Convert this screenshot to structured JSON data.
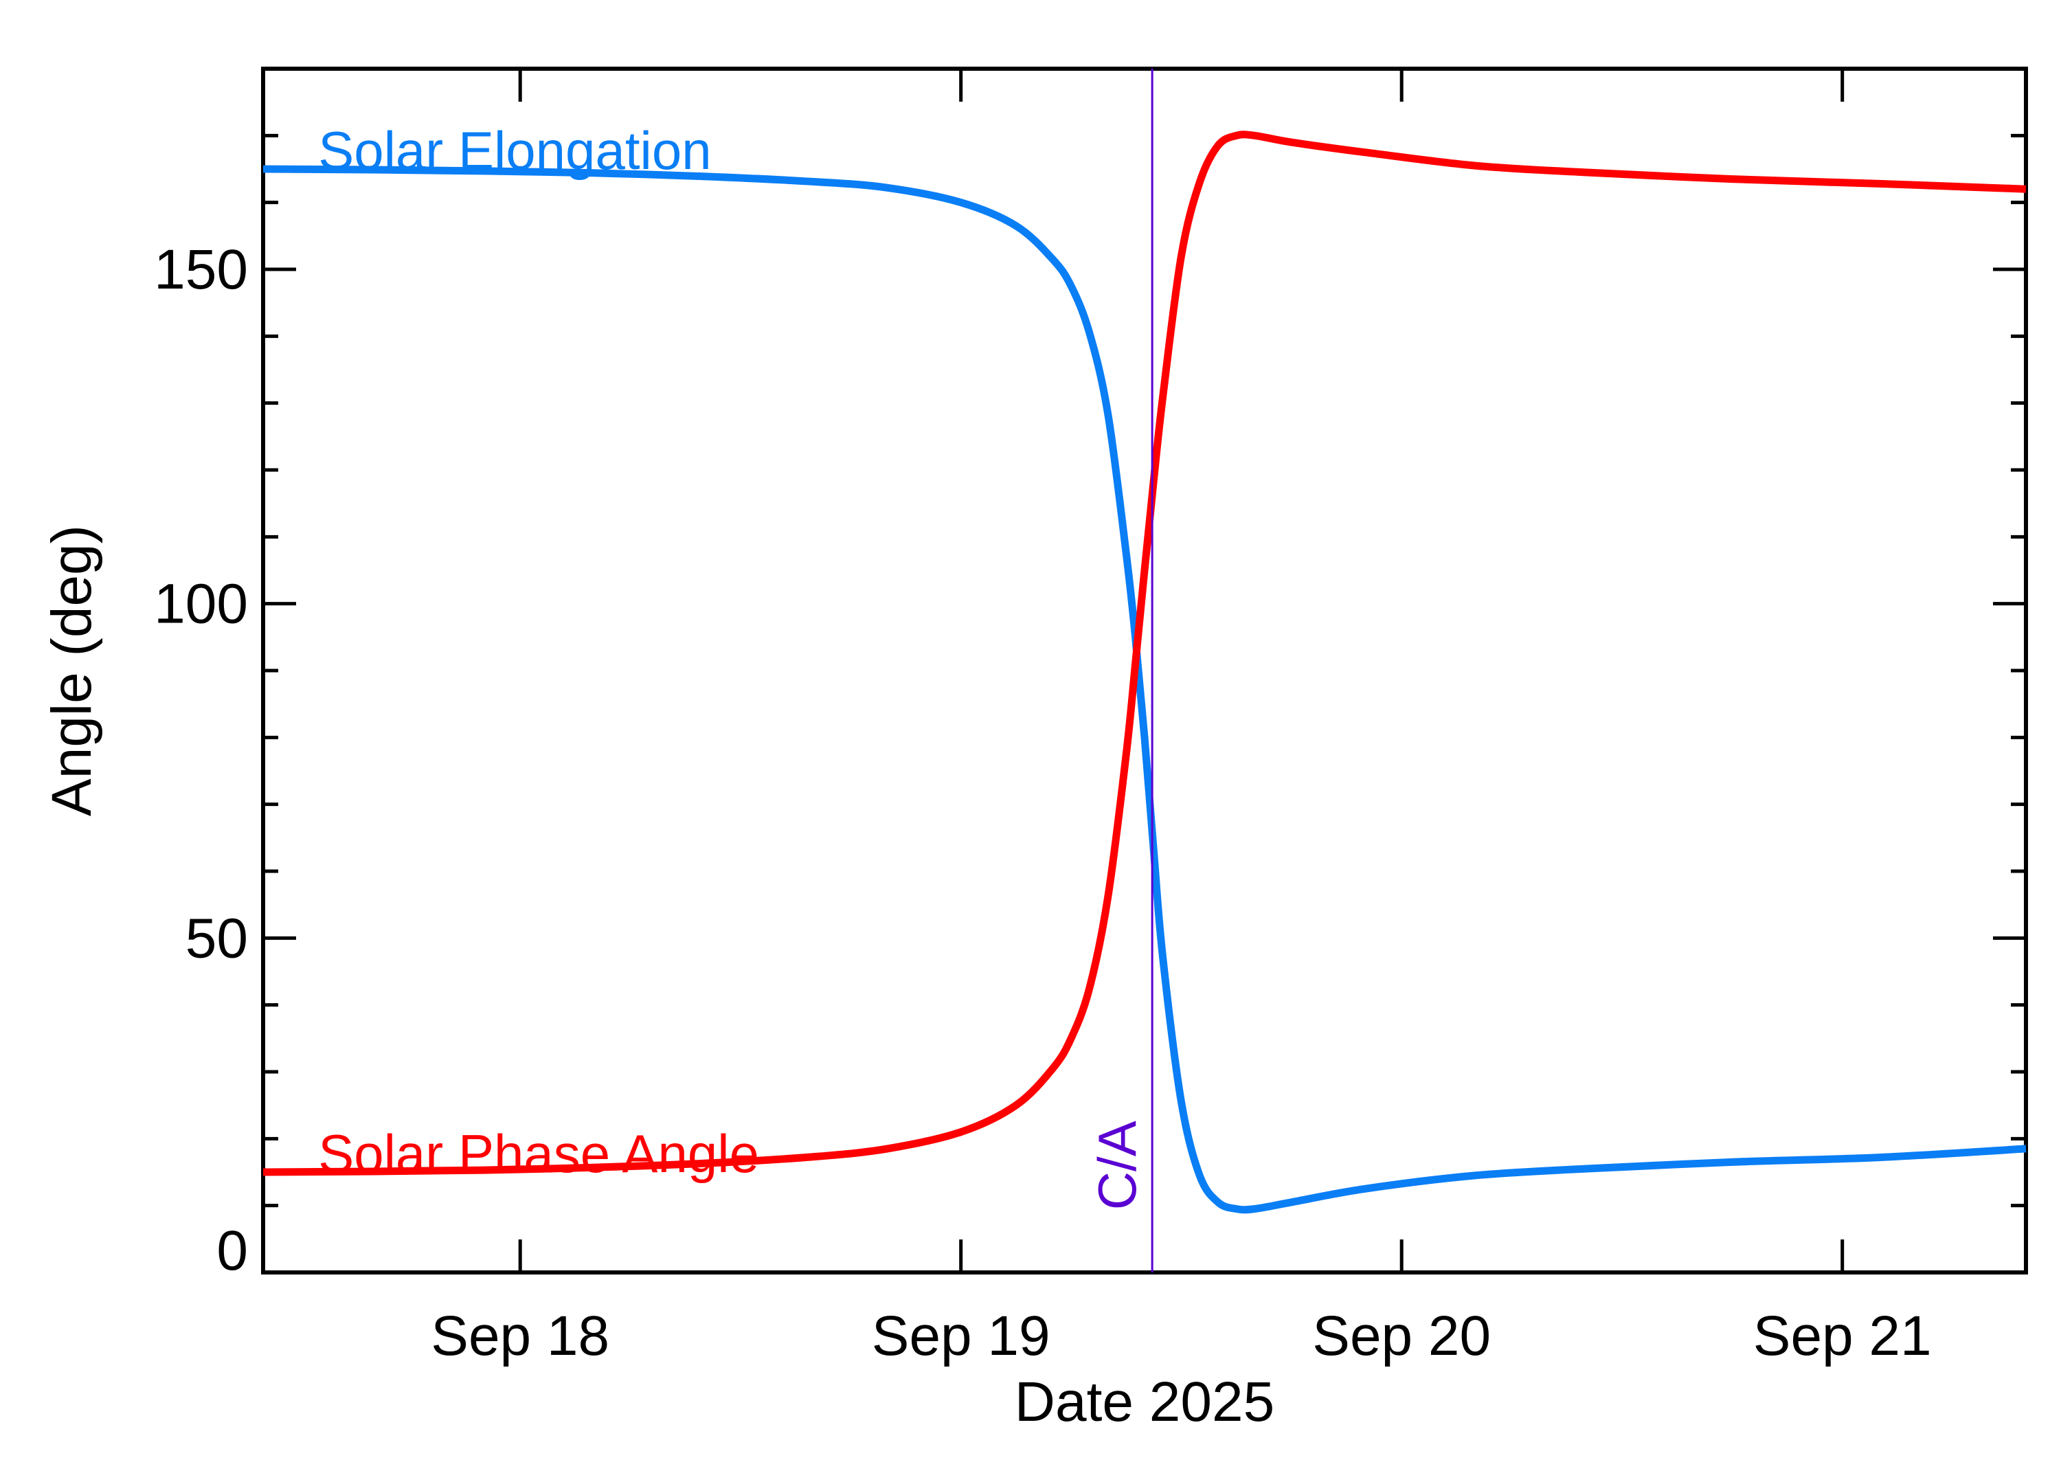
{
  "chart_data": {
    "type": "line",
    "title": "",
    "xlabel": "Date 2025",
    "ylabel": "Angle (deg)",
    "xlim": [
      "2025-09-17 10:00",
      "2025-09-21 10:00"
    ],
    "ylim": [
      0,
      180
    ],
    "x_ticks": [
      {
        "date": "2025-09-18 00:00",
        "label": "Sep 18"
      },
      {
        "date": "2025-09-19 00:00",
        "label": "Sep 19"
      },
      {
        "date": "2025-09-20 00:00",
        "label": "Sep 20"
      },
      {
        "date": "2025-09-21 00:00",
        "label": "Sep 21"
      }
    ],
    "y_ticks": [
      0,
      50,
      100,
      150
    ],
    "y_minor_step": 10,
    "x_minor_per_day": 0,
    "grid": false,
    "closest_approach": {
      "date": "2025-09-19 10:25",
      "label": "C/A",
      "color": "#5a00d2"
    },
    "series": [
      {
        "name": "Solar Elongation",
        "color": "#0a7ef5",
        "label_at": {
          "date": "2025-09-17 13:00",
          "y": 165
        },
        "points": [
          [
            "2025-09-17 10:00",
            165.0
          ],
          [
            "2025-09-17 16:00",
            164.9
          ],
          [
            "2025-09-17 22:00",
            164.7
          ],
          [
            "2025-09-18 04:00",
            164.4
          ],
          [
            "2025-09-18 10:00",
            163.9
          ],
          [
            "2025-09-18 16:00",
            163.1
          ],
          [
            "2025-09-18 20:00",
            162.2
          ],
          [
            "2025-09-19 00:00",
            160.0
          ],
          [
            "2025-09-19 03:00",
            156.5
          ],
          [
            "2025-09-19 05:00",
            151.5
          ],
          [
            "2025-09-19 06:00",
            147.5
          ],
          [
            "2025-09-19 07:00",
            140.5
          ],
          [
            "2025-09-19 08:00",
            128.5
          ],
          [
            "2025-09-19 09:00",
            107.5
          ],
          [
            "2025-09-19 09:30",
            95.0
          ],
          [
            "2025-09-19 10:00",
            80.0
          ],
          [
            "2025-09-19 10:30",
            63.0
          ],
          [
            "2025-09-19 11:00",
            47.0
          ],
          [
            "2025-09-19 12:00",
            25.5
          ],
          [
            "2025-09-19 13:00",
            14.5
          ],
          [
            "2025-09-19 14:00",
            10.5
          ],
          [
            "2025-09-19 15:00",
            9.5
          ],
          [
            "2025-09-19 16:00",
            9.5
          ],
          [
            "2025-09-19 18:00",
            10.5
          ],
          [
            "2025-09-19 22:00",
            12.5
          ],
          [
            "2025-09-20 04:00",
            14.5
          ],
          [
            "2025-09-20 10:00",
            15.5
          ],
          [
            "2025-09-20 18:00",
            16.5
          ],
          [
            "2025-09-21 02:00",
            17.2
          ],
          [
            "2025-09-21 10:00",
            18.5
          ]
        ]
      },
      {
        "name": "Solar Phase Angle",
        "color": "#ff0000",
        "label_at": {
          "date": "2025-09-17 13:00",
          "y": 15
        },
        "points": [
          [
            "2025-09-17 10:00",
            15.0
          ],
          [
            "2025-09-17 16:00",
            15.1
          ],
          [
            "2025-09-17 22:00",
            15.3
          ],
          [
            "2025-09-18 04:00",
            15.7
          ],
          [
            "2025-09-18 10:00",
            16.3
          ],
          [
            "2025-09-18 16:00",
            17.3
          ],
          [
            "2025-09-18 20:00",
            18.5
          ],
          [
            "2025-09-19 00:00",
            21.0
          ],
          [
            "2025-09-19 03:00",
            25.0
          ],
          [
            "2025-09-19 05:00",
            30.5
          ],
          [
            "2025-09-19 06:00",
            35.0
          ],
          [
            "2025-09-19 07:00",
            42.5
          ],
          [
            "2025-09-19 08:00",
            56.0
          ],
          [
            "2025-09-19 09:00",
            77.5
          ],
          [
            "2025-09-19 09:30",
            91.0
          ],
          [
            "2025-09-19 10:00",
            105.0
          ],
          [
            "2025-09-19 10:30",
            118.5
          ],
          [
            "2025-09-19 11:00",
            131.0
          ],
          [
            "2025-09-19 12:00",
            152.0
          ],
          [
            "2025-09-19 13:00",
            163.0
          ],
          [
            "2025-09-19 14:00",
            168.5
          ],
          [
            "2025-09-19 15:00",
            170.0
          ],
          [
            "2025-09-19 16:00",
            170.0
          ],
          [
            "2025-09-19 18:00",
            169.0
          ],
          [
            "2025-09-19 22:00",
            167.5
          ],
          [
            "2025-09-20 04:00",
            165.5
          ],
          [
            "2025-09-20 10:00",
            164.5
          ],
          [
            "2025-09-20 18:00",
            163.5
          ],
          [
            "2025-09-21 02:00",
            162.8
          ],
          [
            "2025-09-21 10:00",
            162.0
          ]
        ]
      }
    ]
  }
}
